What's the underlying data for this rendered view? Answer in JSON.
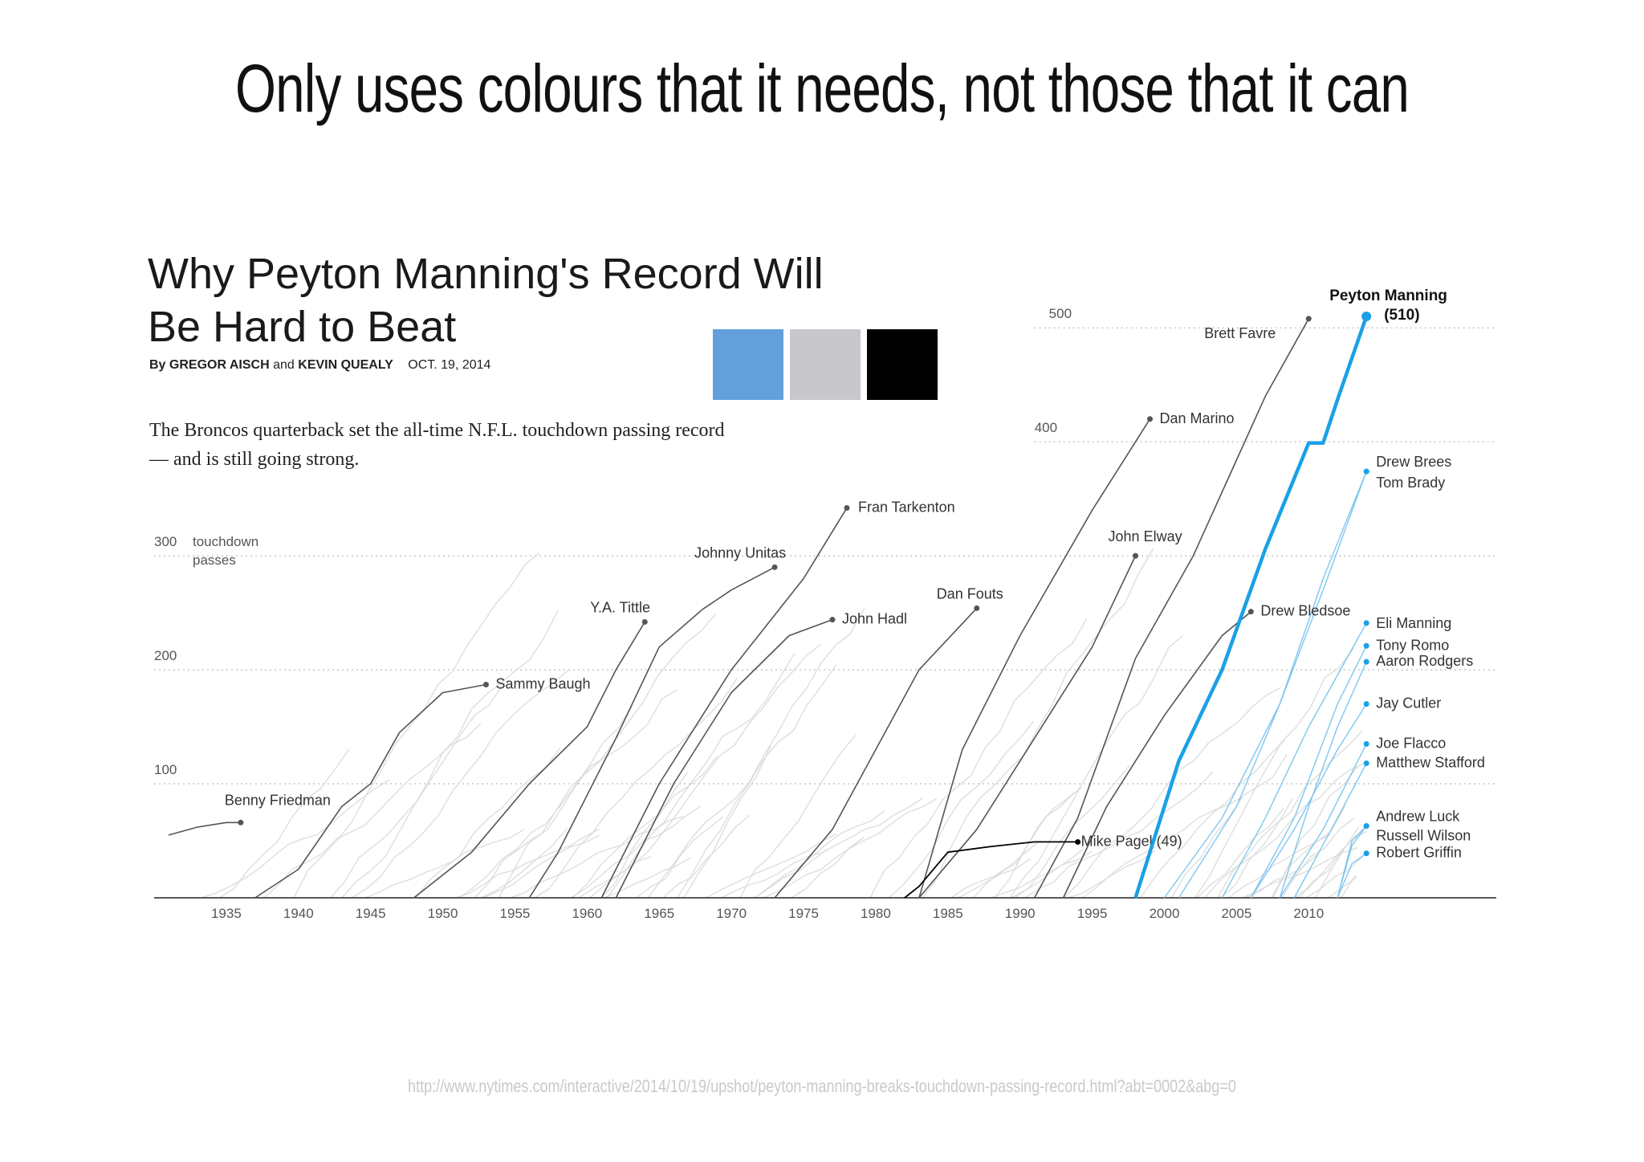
{
  "slide": {
    "title": "Only uses colours that it needs, not those that it can",
    "source_url": "http://www.nytimes.com/interactive/2014/10/19/upshot/peyton-manning-breaks-touchdown-passing-record.html?abt=0002&abg=0"
  },
  "article": {
    "headline_line1": "Why Peyton Manning's Record Will",
    "headline_line2": "Be Hard to Beat",
    "byline_prefix": "By",
    "author1": "GREGOR AISCH",
    "byline_and": "and",
    "author2": "KEVIN QUEALY",
    "date": "OCT. 19, 2014",
    "dek": "The Broncos quarterback set the all-time N.F.L. touchdown passing record — and is still going strong."
  },
  "palette": [
    {
      "name": "blue",
      "color": "#62a0dc"
    },
    {
      "name": "grey",
      "color": "#c8c7cb"
    },
    {
      "name": "black",
      "color": "#000000"
    }
  ],
  "colors": {
    "highlight": "#1aa0e6",
    "highlight_light": "#7fc6ef",
    "dark": "#555555",
    "background_lines": "#dadada",
    "grid": "#aaaaaa"
  },
  "chart_data": {
    "type": "line",
    "title": "",
    "xlabel": "",
    "ylabel": "touchdown passes",
    "xlim": [
      1931,
      2025
    ],
    "ylim": [
      0,
      510
    ],
    "x_ticks": [
      1935,
      1940,
      1945,
      1950,
      1955,
      1960,
      1965,
      1970,
      1975,
      1980,
      1985,
      1990,
      1995,
      2000,
      2005,
      2010
    ],
    "y_ticks": [
      100,
      200,
      300,
      400,
      500
    ],
    "ytick_suffix": {
      "300": "touchdown passes"
    },
    "grid": "horizontal dotted",
    "background_series_note": "many unlabeled grey career lines",
    "series": [
      {
        "name": "Benny Friedman",
        "style": "dark",
        "points": [
          [
            1931,
            55
          ],
          [
            1933,
            62
          ],
          [
            1935,
            66
          ],
          [
            1936,
            66
          ]
        ],
        "label": "Benny Friedman"
      },
      {
        "name": "Sammy Baugh",
        "style": "dark",
        "points": [
          [
            1937,
            0
          ],
          [
            1940,
            25
          ],
          [
            1943,
            80
          ],
          [
            1945,
            100
          ],
          [
            1947,
            145
          ],
          [
            1950,
            180
          ],
          [
            1953,
            187
          ]
        ],
        "label": "Sammy Baugh"
      },
      {
        "name": "Y.A. Tittle",
        "style": "dark",
        "points": [
          [
            1948,
            0
          ],
          [
            1952,
            40
          ],
          [
            1956,
            100
          ],
          [
            1960,
            150
          ],
          [
            1962,
            200
          ],
          [
            1964,
            242
          ]
        ],
        "label": "Y.A. Tittle"
      },
      {
        "name": "Johnny Unitas",
        "style": "dark",
        "points": [
          [
            1956,
            0
          ],
          [
            1958,
            40
          ],
          [
            1962,
            140
          ],
          [
            1965,
            220
          ],
          [
            1968,
            253
          ],
          [
            1970,
            270
          ],
          [
            1973,
            290
          ]
        ],
        "label": "Johnny Unitas"
      },
      {
        "name": "Fran Tarkenton",
        "style": "dark",
        "points": [
          [
            1961,
            0
          ],
          [
            1965,
            100
          ],
          [
            1970,
            200
          ],
          [
            1975,
            280
          ],
          [
            1978,
            342
          ]
        ],
        "label": "Fran Tarkenton"
      },
      {
        "name": "John Hadl",
        "style": "dark",
        "points": [
          [
            1962,
            0
          ],
          [
            1966,
            100
          ],
          [
            1970,
            180
          ],
          [
            1974,
            230
          ],
          [
            1977,
            244
          ]
        ],
        "label": "John Hadl"
      },
      {
        "name": "Dan Fouts",
        "style": "dark",
        "points": [
          [
            1973,
            0
          ],
          [
            1977,
            60
          ],
          [
            1980,
            130
          ],
          [
            1983,
            200
          ],
          [
            1987,
            254
          ]
        ],
        "label": "Dan Fouts"
      },
      {
        "name": "Dan Marino",
        "style": "dark",
        "points": [
          [
            1983,
            0
          ],
          [
            1986,
            130
          ],
          [
            1990,
            230
          ],
          [
            1995,
            340
          ],
          [
            1999,
            420
          ]
        ],
        "label": "Dan Marino"
      },
      {
        "name": "John Elway",
        "style": "dark",
        "points": [
          [
            1983,
            0
          ],
          [
            1987,
            60
          ],
          [
            1991,
            140
          ],
          [
            1995,
            220
          ],
          [
            1998,
            300
          ]
        ],
        "label": "John Elway"
      },
      {
        "name": "Mike Pagel",
        "style": "black",
        "points": [
          [
            1982,
            0
          ],
          [
            1983,
            10
          ],
          [
            1985,
            40
          ],
          [
            1988,
            45
          ],
          [
            1991,
            49
          ],
          [
            1994,
            49
          ]
        ],
        "label": "Mike Pagel (49)"
      },
      {
        "name": "Brett Favre",
        "style": "dark",
        "points": [
          [
            1991,
            0
          ],
          [
            1994,
            70
          ],
          [
            1998,
            210
          ],
          [
            2002,
            300
          ],
          [
            2007,
            440
          ],
          [
            2010,
            508
          ]
        ],
        "label": "Brett Favre"
      },
      {
        "name": "Drew Bledsoe",
        "style": "dark",
        "points": [
          [
            1993,
            0
          ],
          [
            1996,
            80
          ],
          [
            2000,
            160
          ],
          [
            2004,
            230
          ],
          [
            2006,
            251
          ]
        ],
        "label": "Drew Bledsoe"
      },
      {
        "name": "Peyton Manning",
        "style": "highlight",
        "points": [
          [
            1998,
            0
          ],
          [
            2001,
            120
          ],
          [
            2004,
            200
          ],
          [
            2007,
            306
          ],
          [
            2010,
            399
          ],
          [
            2011,
            399
          ],
          [
            2012,
            437
          ],
          [
            2014,
            510
          ]
        ],
        "label": "Peyton Manning",
        "value_label": "(510)"
      },
      {
        "name": "Drew Brees",
        "style": "highlight_light",
        "points": [
          [
            2001,
            0
          ],
          [
            2005,
            80
          ],
          [
            2008,
            170
          ],
          [
            2011,
            280
          ],
          [
            2014,
            374
          ]
        ],
        "label": "Drew Brees"
      },
      {
        "name": "Tom Brady",
        "style": "highlight_light",
        "points": [
          [
            2000,
            0
          ],
          [
            2004,
            70
          ],
          [
            2008,
            170
          ],
          [
            2011,
            270
          ],
          [
            2014,
            374
          ]
        ],
        "label": "Tom Brady"
      },
      {
        "name": "Eli Manning",
        "style": "highlight_light",
        "points": [
          [
            2004,
            0
          ],
          [
            2007,
            70
          ],
          [
            2010,
            150
          ],
          [
            2014,
            241
          ]
        ],
        "label": "Eli Manning"
      },
      {
        "name": "Tony Romo",
        "style": "highlight_light",
        "points": [
          [
            2006,
            0
          ],
          [
            2009,
            70
          ],
          [
            2012,
            170
          ],
          [
            2014,
            221
          ]
        ],
        "label": "Tony Romo"
      },
      {
        "name": "Aaron Rodgers",
        "style": "highlight_light",
        "points": [
          [
            2008,
            0
          ],
          [
            2010,
            80
          ],
          [
            2012,
            150
          ],
          [
            2014,
            207
          ]
        ],
        "label": "Aaron Rodgers"
      },
      {
        "name": "Jay Cutler",
        "style": "highlight_light",
        "points": [
          [
            2006,
            0
          ],
          [
            2009,
            60
          ],
          [
            2012,
            130
          ],
          [
            2014,
            170
          ]
        ],
        "label": "Jay Cutler"
      },
      {
        "name": "Joe Flacco",
        "style": "highlight_light",
        "points": [
          [
            2008,
            0
          ],
          [
            2011,
            60
          ],
          [
            2014,
            135
          ]
        ],
        "label": "Joe Flacco"
      },
      {
        "name": "Matthew Stafford",
        "style": "highlight_light",
        "points": [
          [
            2009,
            0
          ],
          [
            2012,
            70
          ],
          [
            2014,
            118
          ]
        ],
        "label": "Matthew Stafford"
      },
      {
        "name": "Andrew Luck",
        "style": "highlight_light",
        "points": [
          [
            2012,
            0
          ],
          [
            2013,
            50
          ],
          [
            2014,
            63
          ]
        ],
        "label": "Andrew Luck"
      },
      {
        "name": "Russell Wilson",
        "style": "highlight_light",
        "points": [
          [
            2012,
            0
          ],
          [
            2013,
            46
          ],
          [
            2014,
            63
          ]
        ],
        "label": "Russell Wilson"
      },
      {
        "name": "Robert Griffin",
        "style": "highlight_light",
        "points": [
          [
            2012,
            0
          ],
          [
            2013,
            30
          ],
          [
            2014,
            39
          ]
        ],
        "label": "Robert Griffin"
      }
    ]
  }
}
